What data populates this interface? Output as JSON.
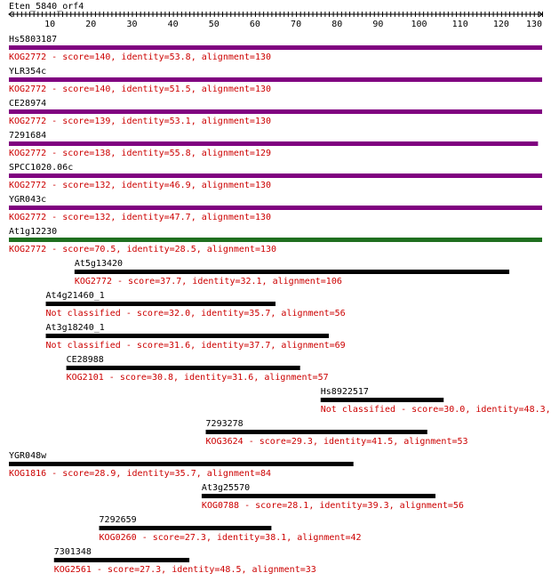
{
  "query": {
    "name": "Eten_5840_orf4",
    "length": 130,
    "ticks": [
      10,
      20,
      30,
      40,
      50,
      60,
      70,
      80,
      90,
      100,
      110,
      120,
      130
    ]
  },
  "colors": {
    "text": "#000000",
    "annotation": "#cc0000",
    "purple": "#800080",
    "green": "#1f6f1f",
    "black": "#000000"
  },
  "hits": [
    {
      "name": "Hs5803187",
      "start": 1,
      "end": 130,
      "color": "purple",
      "annotation": "KOG2772 - score=140, identity=53.8, alignment=130"
    },
    {
      "name": "YLR354c",
      "start": 1,
      "end": 130,
      "color": "purple",
      "annotation": "KOG2772 - score=140, identity=51.5, alignment=130"
    },
    {
      "name": "CE28974",
      "start": 1,
      "end": 130,
      "color": "purple",
      "annotation": "KOG2772 - score=139, identity=53.1, alignment=130"
    },
    {
      "name": "7291684",
      "start": 1,
      "end": 129,
      "color": "purple",
      "annotation": "KOG2772 - score=138, identity=55.8, alignment=129"
    },
    {
      "name": "SPCC1020.06c",
      "start": 1,
      "end": 130,
      "color": "purple",
      "annotation": "KOG2772 - score=132, identity=46.9, alignment=130"
    },
    {
      "name": "YGR043c",
      "start": 1,
      "end": 130,
      "color": "purple",
      "annotation": "KOG2772 - score=132, identity=47.7, alignment=130"
    },
    {
      "name": "At1g12230",
      "start": 1,
      "end": 130,
      "color": "green",
      "annotation": "KOG2772 - score=70.5, identity=28.5, alignment=130"
    },
    {
      "name": "At5g13420",
      "start": 17,
      "end": 122,
      "color": "black",
      "annotation": "KOG2772 - score=37.7, identity=32.1, alignment=106"
    },
    {
      "name": "At4g21460_1",
      "start": 10,
      "end": 65,
      "color": "black",
      "annotation": "Not classified - score=32.0, identity=35.7, alignment=56"
    },
    {
      "name": "At3g18240_1",
      "start": 10,
      "end": 78,
      "color": "black",
      "annotation": "Not classified - score=31.6, identity=37.7, alignment=69"
    },
    {
      "name": "CE28988",
      "start": 15,
      "end": 71,
      "color": "black",
      "annotation": "KOG2101 - score=30.8, identity=31.6, alignment=57"
    },
    {
      "name": "Hs8922517",
      "start": 77,
      "end": 106,
      "color": "black",
      "annotation": "Not classified - score=30.0, identity=48.3,"
    },
    {
      "name": "7293278",
      "start": 49,
      "end": 102,
      "color": "black",
      "annotation": "KOG3624 - score=29.3, identity=41.5, alignment=53"
    },
    {
      "name": "YGR048w",
      "start": 1,
      "end": 84,
      "color": "black",
      "annotation": "KOG1816 - score=28.9, identity=35.7, alignment=84"
    },
    {
      "name": "At3g25570",
      "start": 48,
      "end": 104,
      "color": "black",
      "annotation": "KOG0788 - score=28.1, identity=39.3, alignment=56"
    },
    {
      "name": "7292659",
      "start": 23,
      "end": 64,
      "color": "black",
      "annotation": "KOG0260 - score=27.3, identity=38.1, alignment=42"
    },
    {
      "name": "7301348",
      "start": 12,
      "end": 44,
      "color": "black",
      "annotation": "KOG2561 - score=27.3, identity=48.5, alignment=33"
    }
  ]
}
